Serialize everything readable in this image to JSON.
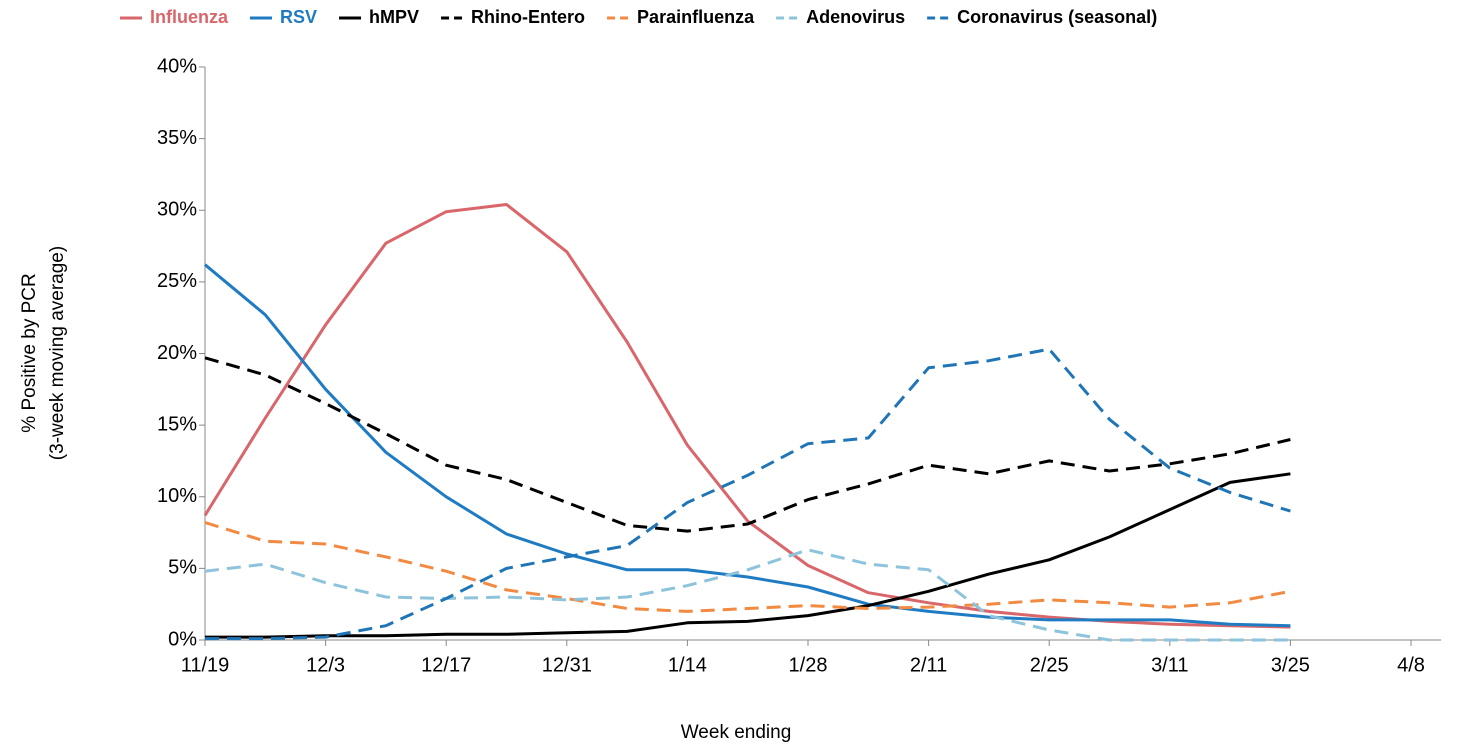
{
  "chart_data": {
    "type": "line",
    "x_label": "Week ending",
    "y_label": [
      "% Positive by PCR",
      "(3-week moving average)"
    ],
    "categories": [
      "11/19",
      null,
      "12/3",
      null,
      "12/17",
      null,
      "12/31",
      null,
      "1/14",
      null,
      "1/28",
      null,
      "2/11",
      null,
      "2/25",
      null,
      "3/11",
      null,
      "3/25",
      null,
      "4/8"
    ],
    "ylim": [
      0,
      40
    ],
    "yticks": [
      {
        "value": 0,
        "label": "0%"
      },
      {
        "value": 5,
        "label": "5%"
      },
      {
        "value": 10,
        "label": "10%"
      },
      {
        "value": 15,
        "label": "15%"
      },
      {
        "value": 20,
        "label": "20%"
      },
      {
        "value": 25,
        "label": "25%"
      },
      {
        "value": 30,
        "label": "30%"
      },
      {
        "value": 35,
        "label": "35%"
      },
      {
        "value": 40,
        "label": "40%"
      }
    ],
    "series": [
      {
        "name": "Influenza",
        "color": "#d9666a",
        "legend_color": "#d9666a",
        "dashed": false,
        "values": [
          8.7,
          15.5,
          22.0,
          27.7,
          29.9,
          30.4,
          27.1,
          20.8,
          13.6,
          8.3,
          5.2,
          3.3,
          2.6,
          2.0,
          1.6,
          1.3,
          1.1,
          1.0,
          0.9,
          null,
          null
        ]
      },
      {
        "name": "RSV",
        "color": "#1f7bc2",
        "legend_color": "#1f7bc2",
        "dashed": false,
        "values": [
          26.2,
          22.7,
          17.5,
          13.1,
          10.0,
          7.4,
          6.0,
          4.9,
          4.9,
          4.4,
          3.7,
          2.5,
          2.0,
          1.6,
          1.4,
          1.4,
          1.4,
          1.1,
          1.0,
          null,
          null
        ]
      },
      {
        "name": "hMPV",
        "color": "#000000",
        "legend_color": "#000000",
        "dashed": false,
        "values": [
          0.2,
          0.2,
          0.3,
          0.3,
          0.4,
          0.4,
          0.5,
          0.6,
          1.2,
          1.3,
          1.7,
          2.4,
          3.4,
          4.6,
          5.6,
          7.2,
          9.1,
          11.0,
          11.6,
          null,
          null
        ]
      },
      {
        "name": "Rhino-Entero",
        "color": "#000000",
        "legend_color": "#000000",
        "dashed": true,
        "values": [
          19.7,
          18.5,
          16.5,
          14.4,
          12.2,
          11.2,
          9.6,
          8.0,
          7.6,
          8.1,
          9.8,
          10.9,
          12.2,
          11.6,
          12.5,
          11.8,
          12.3,
          13.0,
          14.0,
          null,
          null
        ]
      },
      {
        "name": "Parainfluenza",
        "color": "#f28a42",
        "legend_color": "#000000",
        "dashed": true,
        "values": [
          8.2,
          6.9,
          6.7,
          5.8,
          4.8,
          3.5,
          2.9,
          2.2,
          2.0,
          2.2,
          2.4,
          2.2,
          2.3,
          2.5,
          2.8,
          2.6,
          2.3,
          2.6,
          3.4,
          null,
          null
        ]
      },
      {
        "name": "Adenovirus",
        "color": "#8ec3dc",
        "legend_color": "#000000",
        "dashed": true,
        "values": [
          4.8,
          5.3,
          4.0,
          3.0,
          2.9,
          3.0,
          2.8,
          3.0,
          3.8,
          4.9,
          6.3,
          5.3,
          4.9,
          1.7,
          0.7,
          0.0,
          0.0,
          0.0,
          0.0,
          null,
          null
        ]
      },
      {
        "name": "Coronavirus (seasonal)",
        "color": "#1f75b5",
        "legend_color": "#000000",
        "dashed": true,
        "values": [
          0.1,
          0.1,
          0.2,
          1.0,
          2.9,
          5.0,
          5.8,
          6.6,
          9.6,
          11.5,
          13.7,
          14.1,
          19.0,
          19.5,
          20.3,
          15.4,
          12.0,
          10.3,
          9.0,
          null,
          null
        ]
      }
    ]
  }
}
